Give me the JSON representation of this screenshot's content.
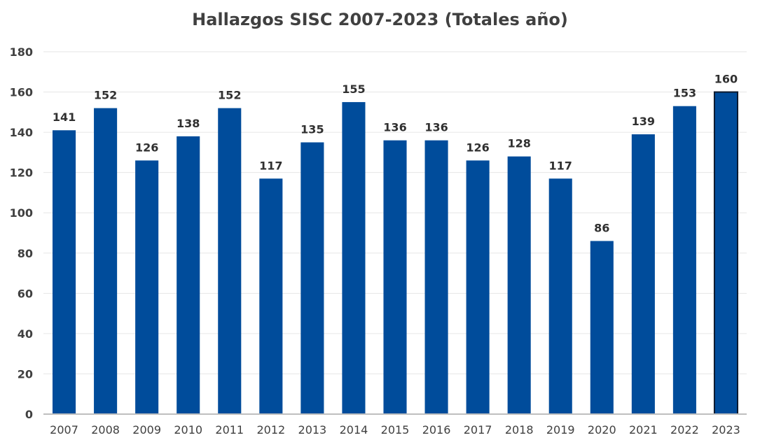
{
  "chart_data": {
    "type": "bar",
    "title": "Hallazgos SISC 2007-2023 (Totales año)",
    "xlabel": "",
    "ylabel": "",
    "categories": [
      "2007",
      "2008",
      "2009",
      "2010",
      "2011",
      "2012",
      "2013",
      "2014",
      "2015",
      "2016",
      "2017",
      "2018",
      "2019",
      "2020",
      "2021",
      "2022",
      "2023"
    ],
    "values": [
      141,
      152,
      126,
      138,
      152,
      117,
      135,
      155,
      136,
      136,
      126,
      128,
      117,
      86,
      139,
      153,
      160
    ],
    "data_labels": [
      "141",
      "152",
      "126",
      "138",
      "152",
      "117",
      "135",
      "155",
      "136",
      "136",
      "126",
      "128",
      "117",
      "86",
      "139",
      "153",
      "160"
    ],
    "ylim": [
      0,
      180
    ],
    "yticks": [
      "0",
      "20",
      "40",
      "60",
      "80",
      "100",
      "120",
      "140",
      "160",
      "180"
    ],
    "grid": true,
    "legend": "none",
    "highlighted_category": "2023",
    "colors": {
      "bar": "#004C9B",
      "highlight_outline": "#0D1A2E",
      "grid": "#E6E6E6",
      "axis": "#BFBFBF",
      "text": "#404040"
    }
  }
}
